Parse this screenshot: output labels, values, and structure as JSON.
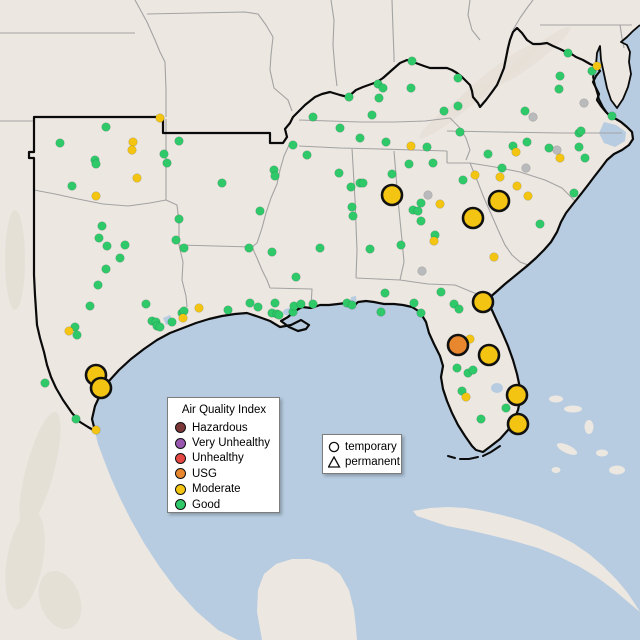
{
  "legend_aqi": {
    "title": "Air Quality Index",
    "items": [
      {
        "label": "Hazardous",
        "color": "#7c3838"
      },
      {
        "label": "Very Unhealthy",
        "color": "#9a57b0"
      },
      {
        "label": "Unhealthy",
        "color": "#e54743"
      },
      {
        "label": "USG",
        "color": "#e8872e"
      },
      {
        "label": "Moderate",
        "color": "#f3c512"
      },
      {
        "label": "Good",
        "color": "#2fc96a"
      }
    ]
  },
  "legend_markers": {
    "items": [
      {
        "label": "temporary",
        "shape": "circle"
      },
      {
        "label": "permanent",
        "shape": "triangle"
      }
    ]
  },
  "palette": {
    "water": "#b7cce0",
    "land": "#ece7e1",
    "terrain_shade": "#ddd6ca",
    "state_border": "#a3a3a3",
    "region_border": "#0a0a0a"
  },
  "aqi_colors": {
    "good": "#2fc96a",
    "moderate": "#f3c512",
    "usg": "#e8872e",
    "unhealthy": "#e54743",
    "very_unhealthy": "#9a57b0",
    "hazardous": "#7c3838",
    "missing": "#b9babc"
  },
  "stations": {
    "small": [
      [
        106,
        127,
        "good"
      ],
      [
        60,
        143,
        "good"
      ],
      [
        95,
        160,
        "good"
      ],
      [
        96,
        164,
        "good"
      ],
      [
        72,
        186,
        "good"
      ],
      [
        179,
        141,
        "good"
      ],
      [
        164,
        154,
        "good"
      ],
      [
        167,
        163,
        "good"
      ],
      [
        313,
        117,
        "good"
      ],
      [
        293,
        145,
        "good"
      ],
      [
        307,
        155,
        "good"
      ],
      [
        102,
        226,
        "good"
      ],
      [
        99,
        238,
        "good"
      ],
      [
        107,
        246,
        "good"
      ],
      [
        125,
        245,
        "good"
      ],
      [
        120,
        258,
        "good"
      ],
      [
        106,
        269,
        "good"
      ],
      [
        98,
        285,
        "good"
      ],
      [
        90,
        306,
        "good"
      ],
      [
        146,
        304,
        "good"
      ],
      [
        182,
        313,
        "good"
      ],
      [
        75,
        327,
        "good"
      ],
      [
        77,
        335,
        "good"
      ],
      [
        45,
        383,
        "good"
      ],
      [
        76,
        419,
        "good"
      ],
      [
        152,
        321,
        "good"
      ],
      [
        156,
        322,
        "good"
      ],
      [
        157,
        326,
        "good"
      ],
      [
        160,
        327,
        "good"
      ],
      [
        172,
        322,
        "good"
      ],
      [
        184,
        311,
        "good"
      ],
      [
        222,
        183,
        "good"
      ],
      [
        179,
        219,
        "good"
      ],
      [
        176,
        240,
        "good"
      ],
      [
        184,
        248,
        "good"
      ],
      [
        249,
        248,
        "good"
      ],
      [
        260,
        211,
        "good"
      ],
      [
        274,
        170,
        "good"
      ],
      [
        275,
        176,
        "good"
      ],
      [
        272,
        252,
        "good"
      ],
      [
        296,
        277,
        "good"
      ],
      [
        228,
        310,
        "good"
      ],
      [
        250,
        303,
        "good"
      ],
      [
        258,
        307,
        "good"
      ],
      [
        275,
        303,
        "good"
      ],
      [
        272,
        313,
        "good"
      ],
      [
        277,
        314,
        "good"
      ],
      [
        279,
        315,
        "good"
      ],
      [
        293,
        312,
        "good"
      ],
      [
        294,
        306,
        "good"
      ],
      [
        301,
        304,
        "good"
      ],
      [
        313,
        304,
        "good"
      ],
      [
        347,
        303,
        "good"
      ],
      [
        352,
        305,
        "good"
      ],
      [
        320,
        248,
        "good"
      ],
      [
        339,
        173,
        "good"
      ],
      [
        360,
        183,
        "good"
      ],
      [
        351,
        187,
        "good"
      ],
      [
        352,
        207,
        "good"
      ],
      [
        353,
        216,
        "good"
      ],
      [
        412,
        61,
        "good"
      ],
      [
        458,
        78,
        "good"
      ],
      [
        378,
        84,
        "good"
      ],
      [
        383,
        88,
        "good"
      ],
      [
        379,
        98,
        "good"
      ],
      [
        349,
        97,
        "good"
      ],
      [
        411,
        88,
        "good"
      ],
      [
        372,
        115,
        "good"
      ],
      [
        444,
        111,
        "good"
      ],
      [
        458,
        106,
        "good"
      ],
      [
        460,
        132,
        "good"
      ],
      [
        340,
        128,
        "good"
      ],
      [
        360,
        138,
        "good"
      ],
      [
        386,
        142,
        "good"
      ],
      [
        427,
        147,
        "good"
      ],
      [
        363,
        183,
        "good"
      ],
      [
        370,
        249,
        "good"
      ],
      [
        385,
        293,
        "good"
      ],
      [
        401,
        245,
        "good"
      ],
      [
        409,
        164,
        "good"
      ],
      [
        433,
        163,
        "good"
      ],
      [
        392,
        174,
        "good"
      ],
      [
        463,
        180,
        "good"
      ],
      [
        421,
        203,
        "good"
      ],
      [
        413,
        210,
        "good"
      ],
      [
        418,
        211,
        "good"
      ],
      [
        421,
        221,
        "good"
      ],
      [
        435,
        235,
        "good"
      ],
      [
        441,
        292,
        "good"
      ],
      [
        414,
        303,
        "good"
      ],
      [
        421,
        313,
        "good"
      ],
      [
        381,
        312,
        "good"
      ],
      [
        454,
        304,
        "good"
      ],
      [
        459,
        309,
        "good"
      ],
      [
        457,
        368,
        "good"
      ],
      [
        468,
        373,
        "good"
      ],
      [
        473,
        370,
        "good"
      ],
      [
        462,
        391,
        "good"
      ],
      [
        481,
        419,
        "good"
      ],
      [
        506,
        408,
        "good"
      ],
      [
        568,
        53,
        "good"
      ],
      [
        592,
        71,
        "good"
      ],
      [
        560,
        76,
        "good"
      ],
      [
        559,
        89,
        "good"
      ],
      [
        525,
        111,
        "good"
      ],
      [
        612,
        116,
        "good"
      ],
      [
        579,
        133,
        "good"
      ],
      [
        488,
        154,
        "good"
      ],
      [
        513,
        146,
        "good"
      ],
      [
        527,
        142,
        "good"
      ],
      [
        549,
        148,
        "good"
      ],
      [
        581,
        131,
        "good"
      ],
      [
        579,
        147,
        "good"
      ],
      [
        585,
        158,
        "good"
      ],
      [
        502,
        168,
        "good"
      ],
      [
        574,
        193,
        "good"
      ],
      [
        540,
        224,
        "good"
      ],
      [
        160,
        118,
        "moderate"
      ],
      [
        133,
        142,
        "moderate"
      ],
      [
        132,
        150,
        "moderate"
      ],
      [
        137,
        178,
        "moderate"
      ],
      [
        96,
        196,
        "moderate"
      ],
      [
        199,
        308,
        "moderate"
      ],
      [
        183,
        318,
        "moderate"
      ],
      [
        69,
        331,
        "moderate"
      ],
      [
        96,
        430,
        "moderate"
      ],
      [
        597,
        66,
        "moderate"
      ],
      [
        516,
        152,
        "moderate"
      ],
      [
        560,
        158,
        "moderate"
      ],
      [
        500,
        177,
        "moderate"
      ],
      [
        517,
        186,
        "moderate"
      ],
      [
        528,
        196,
        "moderate"
      ],
      [
        475,
        175,
        "moderate"
      ],
      [
        411,
        146,
        "moderate"
      ],
      [
        440,
        204,
        "moderate"
      ],
      [
        434,
        241,
        "moderate"
      ],
      [
        494,
        257,
        "moderate"
      ],
      [
        470,
        339,
        "moderate"
      ],
      [
        466,
        397,
        "moderate"
      ],
      [
        533,
        117,
        "missing"
      ],
      [
        584,
        103,
        "missing"
      ],
      [
        557,
        150,
        "missing"
      ],
      [
        526,
        168,
        "missing"
      ],
      [
        428,
        195,
        "missing"
      ],
      [
        422,
        271,
        "missing"
      ]
    ],
    "large": [
      [
        96,
        375,
        "moderate"
      ],
      [
        101,
        388,
        "moderate"
      ],
      [
        392,
        195,
        "moderate"
      ],
      [
        473,
        218,
        "moderate"
      ],
      [
        499,
        201,
        "moderate"
      ],
      [
        483,
        302,
        "moderate"
      ],
      [
        458,
        345,
        "usg"
      ],
      [
        489,
        355,
        "moderate"
      ],
      [
        517,
        395,
        "moderate"
      ],
      [
        518,
        424,
        "moderate"
      ]
    ]
  }
}
